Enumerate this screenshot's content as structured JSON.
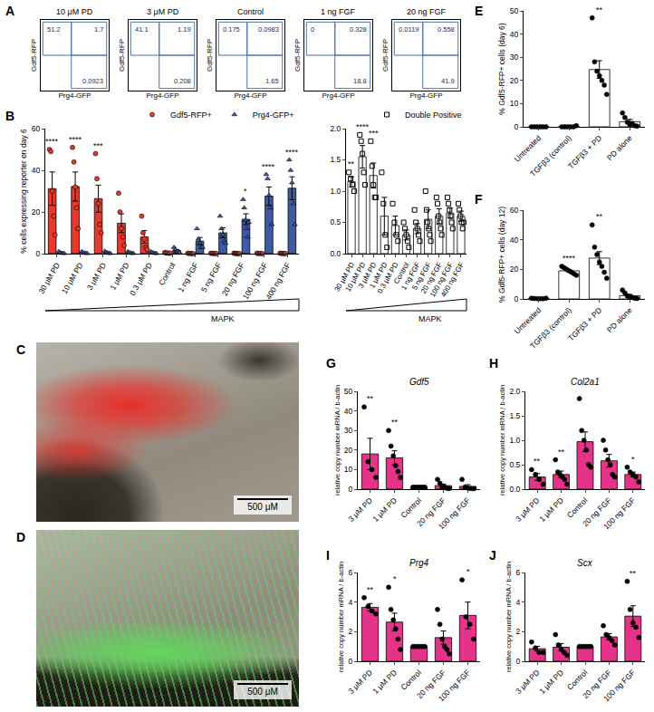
{
  "chart_data": [
    {
      "panel": "A",
      "type": "flow_gates",
      "x_label": "Prg4-GFP",
      "y_label": "Gdf5-RFP",
      "tick_labels": false,
      "plots": [
        {
          "title": "10 μM PD",
          "gates": {
            "upper_left": 51.2,
            "upper_right": 1.7,
            "lower_right": 0.0923
          }
        },
        {
          "title": "3 μM PD",
          "gates": {
            "upper_left": 41.1,
            "upper_right": 1.19,
            "lower_right": 0.208
          }
        },
        {
          "title": "Control",
          "gates": {
            "upper_left": 0.175,
            "upper_right": 0.0983,
            "lower_right": 1.65
          }
        },
        {
          "title": "1 ng FGF",
          "gates": {
            "upper_left": 0,
            "upper_right": 0.328,
            "lower_right": 18.8
          }
        },
        {
          "title": "20 ng FGF",
          "gates": {
            "upper_left": 0.0119,
            "upper_right": 0.558,
            "lower_right": 41.9
          }
        }
      ]
    },
    {
      "panel": "B",
      "type": "bar",
      "y_label": "% cells expressing reporter on day 6",
      "legend": "top right",
      "annotation": "MAPK",
      "categories": [
        "30 μM PD",
        "10 μM PD",
        "3 μM PD",
        "1 μM PD",
        "0.3 μM PD",
        "Control",
        "1 ng FGF",
        "5 ng FGF",
        "20 ng FGF",
        "100 ng FGF",
        "400 ng FGF"
      ],
      "ylim": [
        0,
        60
      ],
      "yticks": [
        0,
        20,
        40,
        60
      ],
      "series": [
        {
          "name": "Gdf5-RFP+",
          "color": "#e8392c",
          "marker": "circle",
          "values": [
            31.2,
            32.2,
            26.4,
            14.6,
            8,
            0.3,
            0.1,
            0.1,
            0.1,
            0.1,
            0.1
          ],
          "errors": [
            8,
            7,
            6.5,
            4.5,
            3,
            0.1,
            0.05,
            0.05,
            0.05,
            0.05,
            0.05
          ],
          "points": [
            [
              50,
              49,
              30,
              18,
              9
            ],
            [
              51,
              44,
              32,
              22,
              12
            ],
            [
              48,
              36,
              24,
              14,
              10
            ],
            [
              29,
              20,
              12,
              8,
              4
            ],
            [
              18,
              10,
              7,
              3,
              2
            ],
            [
              0.5,
              0.3,
              0.3,
              0.2,
              0.2
            ],
            [
              0.2,
              0.1,
              0.1,
              0,
              0
            ],
            [
              0.2,
              0.1,
              0.1,
              0,
              0
            ],
            [
              0.2,
              0.1,
              0.1,
              0,
              0,
              0
            ],
            [
              0.2,
              0.1,
              0.1,
              0,
              0
            ],
            [
              0.2,
              0.1,
              0.1,
              0,
              0
            ]
          ],
          "significance": [
            "****",
            "****",
            "***",
            null,
            null,
            null,
            null,
            null,
            null,
            null,
            null
          ]
        },
        {
          "name": "Prg4-GFP+",
          "color": "#3f5ba8",
          "marker": "triangle",
          "values": [
            0.4,
            0.4,
            0.5,
            0.4,
            0.4,
            1.5,
            6,
            10,
            16.5,
            27.6,
            31.4
          ],
          "errors": [
            0.2,
            0.2,
            0.2,
            0.2,
            0.2,
            0.5,
            1.7,
            2.4,
            2.6,
            4.4,
            5.5
          ],
          "points": [
            [
              1,
              0.5,
              0.3,
              0.2,
              0.1
            ],
            [
              1,
              0.5,
              0.3,
              0.2,
              0.1
            ],
            [
              1.2,
              0.6,
              0.4,
              0.2,
              0.1
            ],
            [
              1,
              0.5,
              0.3,
              0.2,
              0.1
            ],
            [
              1,
              0.5,
              0.3,
              0.2,
              0.1
            ],
            [
              3,
              2,
              1,
              1,
              0.5
            ],
            [
              12,
              7,
              5,
              3,
              3
            ],
            [
              18,
              12,
              9,
              6,
              5
            ],
            [
              26,
              22,
              16,
              12,
              8,
              15
            ],
            [
              38,
              36,
              28,
              22,
              14
            ],
            [
              45,
              40,
              34,
              24,
              14
            ]
          ],
          "significance": [
            null,
            null,
            null,
            null,
            null,
            null,
            null,
            null,
            "*",
            "****",
            "****"
          ]
        }
      ]
    },
    {
      "type": "bar",
      "legend": "top right",
      "annotation": "MAPK",
      "categories": [
        "30 μM PD",
        "10 μM PD",
        "3 μM PD",
        "1 μM PD",
        "0.3 μM PD",
        "Control",
        "1 ng FGF",
        "5 ng FGF",
        "20 ng FGF",
        "100 ng FGF",
        "400 ng FGF"
      ],
      "ylim": [
        0,
        2
      ],
      "yticks": [
        {
          "value": 0,
          "label": "0.0"
        },
        {
          "value": 0.5,
          "label": "0.5"
        },
        {
          "value": 1,
          "label": "1.0"
        },
        {
          "value": 1.5,
          "label": "1.5"
        },
        {
          "value": 2,
          "label": "2.0"
        }
      ],
      "series": [
        {
          "name": "Double Positive",
          "color": "#ffffff",
          "marker": "open square",
          "values": [
            1.15,
            1.55,
            1.25,
            0.6,
            0.45,
            0.3,
            0.4,
            0.55,
            0.6,
            0.65,
            0.6
          ],
          "errors": [
            0.08,
            0.18,
            0.2,
            0.3,
            0.15,
            0.08,
            0.08,
            0.15,
            0.12,
            0.08,
            0.08
          ],
          "points": [
            [
              1.3,
              1.2,
              1.1,
              1.0
            ],
            [
              1.9,
              1.8,
              1.6,
              1.3,
              1.1
            ],
            [
              1.8,
              1.4,
              1.1,
              0.9,
              0.9
            ],
            [
              1.3,
              0.8,
              0.3,
              0.1
            ],
            [
              0.8,
              0.5,
              0.3,
              0.2
            ],
            [
              0.5,
              0.4,
              0.3,
              0.2,
              0.1
            ],
            [
              0.7,
              0.5,
              0.4,
              0.3,
              0.2
            ],
            [
              1.0,
              0.7,
              0.5,
              0.4,
              0.3,
              0.2
            ],
            [
              0.9,
              0.8,
              0.6,
              0.5,
              0.4,
              0.3
            ],
            [
              0.9,
              0.8,
              0.7,
              0.6,
              0.5,
              0.4
            ],
            [
              0.8,
              0.7,
              0.6,
              0.5,
              0.4,
              0.5
            ]
          ],
          "significance": [
            "**",
            "****",
            "***",
            null,
            null,
            null,
            null,
            null,
            null,
            null,
            null
          ]
        }
      ]
    },
    {
      "panel": "E",
      "type": "bar",
      "y_label": "% Gdf5-RFP+ cells (day 6)",
      "categories": [
        "Untreated",
        "TGFβ3 (control)",
        "TGFβ3 + PD",
        "PD alone"
      ],
      "ylim": [
        0,
        50
      ],
      "yticks": [
        0,
        10,
        20,
        30,
        40,
        50
      ],
      "series": [
        {
          "color": "#ffffff",
          "marker": "circle",
          "values": [
            0,
            0.1,
            24.7,
            2.2
          ],
          "errors": [
            0,
            0.1,
            3.8,
            1
          ],
          "points": [
            [
              0,
              0,
              0,
              0,
              0,
              0
            ],
            [
              0,
              0,
              0,
              0,
              0,
              0.5
            ],
            [
              47,
              28,
              24,
              22,
              20,
              18,
              14
            ],
            [
              6,
              4,
              2,
              1,
              1.5,
              0.5,
              0.3
            ]
          ],
          "significance": [
            null,
            null,
            "**",
            null
          ]
        }
      ]
    },
    {
      "panel": "F",
      "type": "bar",
      "y_label": "% Gdf5-RFP+ cells (day 12)",
      "categories": [
        "Untreated",
        "TGFβ3 (control)",
        "TGFβ3 + PD",
        "PD alone"
      ],
      "ylim": [
        0,
        60
      ],
      "yticks": [
        0,
        20,
        40,
        60
      ],
      "series": [
        {
          "color": "#ffffff",
          "marker": "circle",
          "values": [
            0.3,
            19,
            27.6,
            2.2
          ],
          "errors": [
            0.1,
            0.8,
            4.4,
            0.9
          ],
          "points": [
            [
              0.5,
              0.3,
              0.2,
              0.2,
              0.1,
              0.5
            ],
            [
              22,
              21,
              20,
              19,
              18,
              17,
              16
            ],
            [
              50,
              35,
              30,
              25,
              22,
              18,
              14
            ],
            [
              6,
              4,
              2,
              1.5,
              1,
              0.5,
              0.3
            ]
          ],
          "significance": [
            null,
            "****",
            "**",
            null
          ]
        }
      ]
    },
    {
      "panel": "G",
      "type": "bar",
      "title": "Gdf5",
      "y_label": "relative copy number mRNA / b-actin",
      "categories": [
        "3 μM PD",
        "1 μM PD",
        "Control",
        "20 ng FGF",
        "100 ng FGF"
      ],
      "ylim": [
        0,
        50
      ],
      "yticks": [
        0,
        10,
        20,
        30,
        40,
        50
      ],
      "series": [
        {
          "color": "#e6338a",
          "marker": "circle",
          "values": [
            18,
            16,
            1,
            1.8,
            1.4
          ],
          "errors": [
            8,
            3.6,
            0,
            0.8,
            0.9
          ],
          "points": [
            [
              42,
              14,
              10,
              6
            ],
            [
              30,
              22,
              17,
              12,
              9,
              6
            ],
            [
              1,
              1,
              1,
              1,
              1,
              1
            ],
            [
              5,
              3,
              1,
              1,
              0.5,
              0.3
            ],
            [
              5,
              1,
              0.5,
              0.3,
              0.2
            ]
          ],
          "significance": [
            "**",
            "**",
            null,
            null,
            null
          ]
        }
      ]
    },
    {
      "panel": "H",
      "type": "bar",
      "title": "Col2a1",
      "y_label": "relative copy number mRNA / b-actin",
      "categories": [
        "3 μM PD",
        "1 μM PD",
        "Control",
        "20 ng FGF",
        "100 ng FGF"
      ],
      "ylim": [
        0,
        2
      ],
      "yticks": [
        {
          "value": 0,
          "label": "0.0"
        },
        {
          "value": 0.5,
          "label": "0.5"
        },
        {
          "value": 1,
          "label": "1.0"
        },
        {
          "value": 1.5,
          "label": "1.5"
        },
        {
          "value": 2,
          "label": "2.0"
        }
      ],
      "series": [
        {
          "color": "#e6338a",
          "marker": "circle",
          "values": [
            0.25,
            0.3,
            0.97,
            0.58,
            0.3
          ],
          "errors": [
            0.07,
            0.07,
            0.2,
            0.13,
            0.05
          ],
          "points": [
            [
              0.4,
              0.3,
              0.2,
              0.1
            ],
            [
              0.6,
              0.35,
              0.3,
              0.25,
              0.2,
              0.1
            ],
            [
              1.85,
              1.2,
              1.0,
              0.8,
              0.5,
              0.45
            ],
            [
              1.0,
              0.8,
              0.6,
              0.5,
              0.3,
              0.25
            ],
            [
              0.45,
              0.35,
              0.3,
              0.25,
              0.15
            ]
          ],
          "significance": [
            "**",
            "**",
            null,
            null,
            "*"
          ]
        }
      ]
    },
    {
      "panel": "I",
      "type": "bar",
      "title": "Prg4",
      "y_label": "relative copy number mRNA / b-actin",
      "categories": [
        "3 μM PD",
        "1 μM PD",
        "Control",
        "20 ng FGF",
        "100 ng FGF"
      ],
      "ylim": [
        0,
        6
      ],
      "yticks": [
        0,
        2,
        4,
        6
      ],
      "series": [
        {
          "color": "#e6338a",
          "marker": "circle",
          "values": [
            3.65,
            2.65,
            1,
            1.6,
            3.1
          ],
          "errors": [
            0.25,
            0.6,
            0,
            0.45,
            0.9
          ],
          "points": [
            [
              4.3,
              3.7,
              3.4,
              3.2
            ],
            [
              5,
              3.5,
              2.8,
              2.2,
              1.5,
              0.8
            ],
            [
              1,
              1,
              1,
              1,
              1,
              1
            ],
            [
              3.5,
              2.5,
              1.5,
              1,
              0.8,
              0.5
            ],
            [
              5.5,
              3,
              2.5,
              1.5
            ]
          ],
          "significance": [
            "**",
            "*",
            null,
            null,
            "*"
          ]
        }
      ]
    },
    {
      "panel": "J",
      "type": "bar",
      "title": "Scx",
      "y_label": "relative copy number mRNA / b-actin",
      "categories": [
        "3 μM PD",
        "1 μM PD",
        "Control",
        "20 ng FGF",
        "100 ng FGF"
      ],
      "ylim": [
        0,
        6
      ],
      "yticks": [
        0,
        2,
        4,
        6
      ],
      "series": [
        {
          "color": "#e6338a",
          "marker": "circle",
          "values": [
            0.85,
            0.95,
            1,
            1.65,
            3.05
          ],
          "errors": [
            0.16,
            0.25,
            0,
            0.22,
            0.7
          ],
          "points": [
            [
              1.3,
              0.9,
              0.6,
              0.6
            ],
            [
              1.8,
              1.1,
              0.8,
              0.6,
              0.4
            ],
            [
              1,
              1,
              1,
              1,
              1,
              1
            ],
            [
              2.4,
              1.8,
              1.6,
              1.4,
              1.1
            ],
            [
              5.4,
              3.5,
              2.6,
              2.3,
              1.6
            ]
          ],
          "significance": [
            null,
            null,
            null,
            null,
            "**"
          ]
        }
      ]
    }
  ],
  "images": [
    {
      "panel": "C",
      "color": "#e8302a",
      "scale_bar": "500 μM"
    },
    {
      "panel": "D",
      "color": "#62d65c",
      "scale_bar": "500 μM"
    }
  ]
}
